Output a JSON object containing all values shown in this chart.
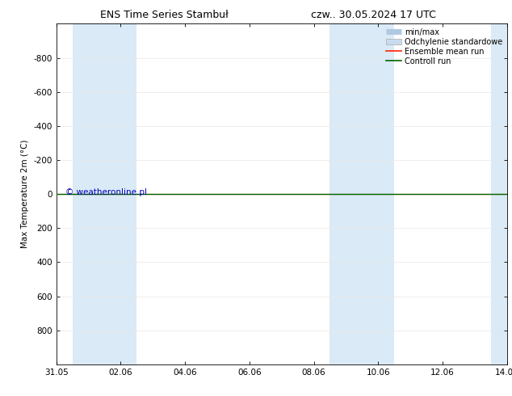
{
  "title_left": "ENS Time Series Stambuł",
  "title_right": "czw.. 30.05.2024 17 UTC",
  "ylabel": "Max Temperature 2m (°C)",
  "xlim": [
    0,
    14
  ],
  "ylim": [
    -1000,
    1000
  ],
  "yticks": [
    -800,
    -600,
    -400,
    -200,
    0,
    200,
    400,
    600,
    800
  ],
  "xtick_labels": [
    "31.05",
    "02.06",
    "04.06",
    "06.06",
    "08.06",
    "10.06",
    "12.06",
    "14.06"
  ],
  "xtick_positions": [
    0,
    2,
    4,
    6,
    8,
    10,
    12,
    14
  ],
  "shaded_bands": [
    [
      0.5,
      1.5
    ],
    [
      1.5,
      2.5
    ],
    [
      8.5,
      9.5
    ],
    [
      9.5,
      10.5
    ],
    [
      13.5,
      14.0
    ]
  ],
  "shaded_color": "#daeaf6",
  "h_line_y": 0,
  "ensemble_mean_color": "#ff2200",
  "control_run_color": "#006600",
  "watermark": "© weatheronline.pl",
  "watermark_color": "#0000bb",
  "legend_labels": [
    "min/max",
    "Odchylenie standardowe",
    "Ensemble mean run",
    "Controll run"
  ],
  "legend_minmax_color": "#afc9e0",
  "legend_std_color": "#c8dced",
  "background_color": "#ffffff",
  "grid_color": "#e8e8e8",
  "tick_color": "#000000",
  "font_size_title": 9,
  "font_size_axis": 7.5,
  "font_size_legend": 7,
  "font_size_watermark": 7.5
}
